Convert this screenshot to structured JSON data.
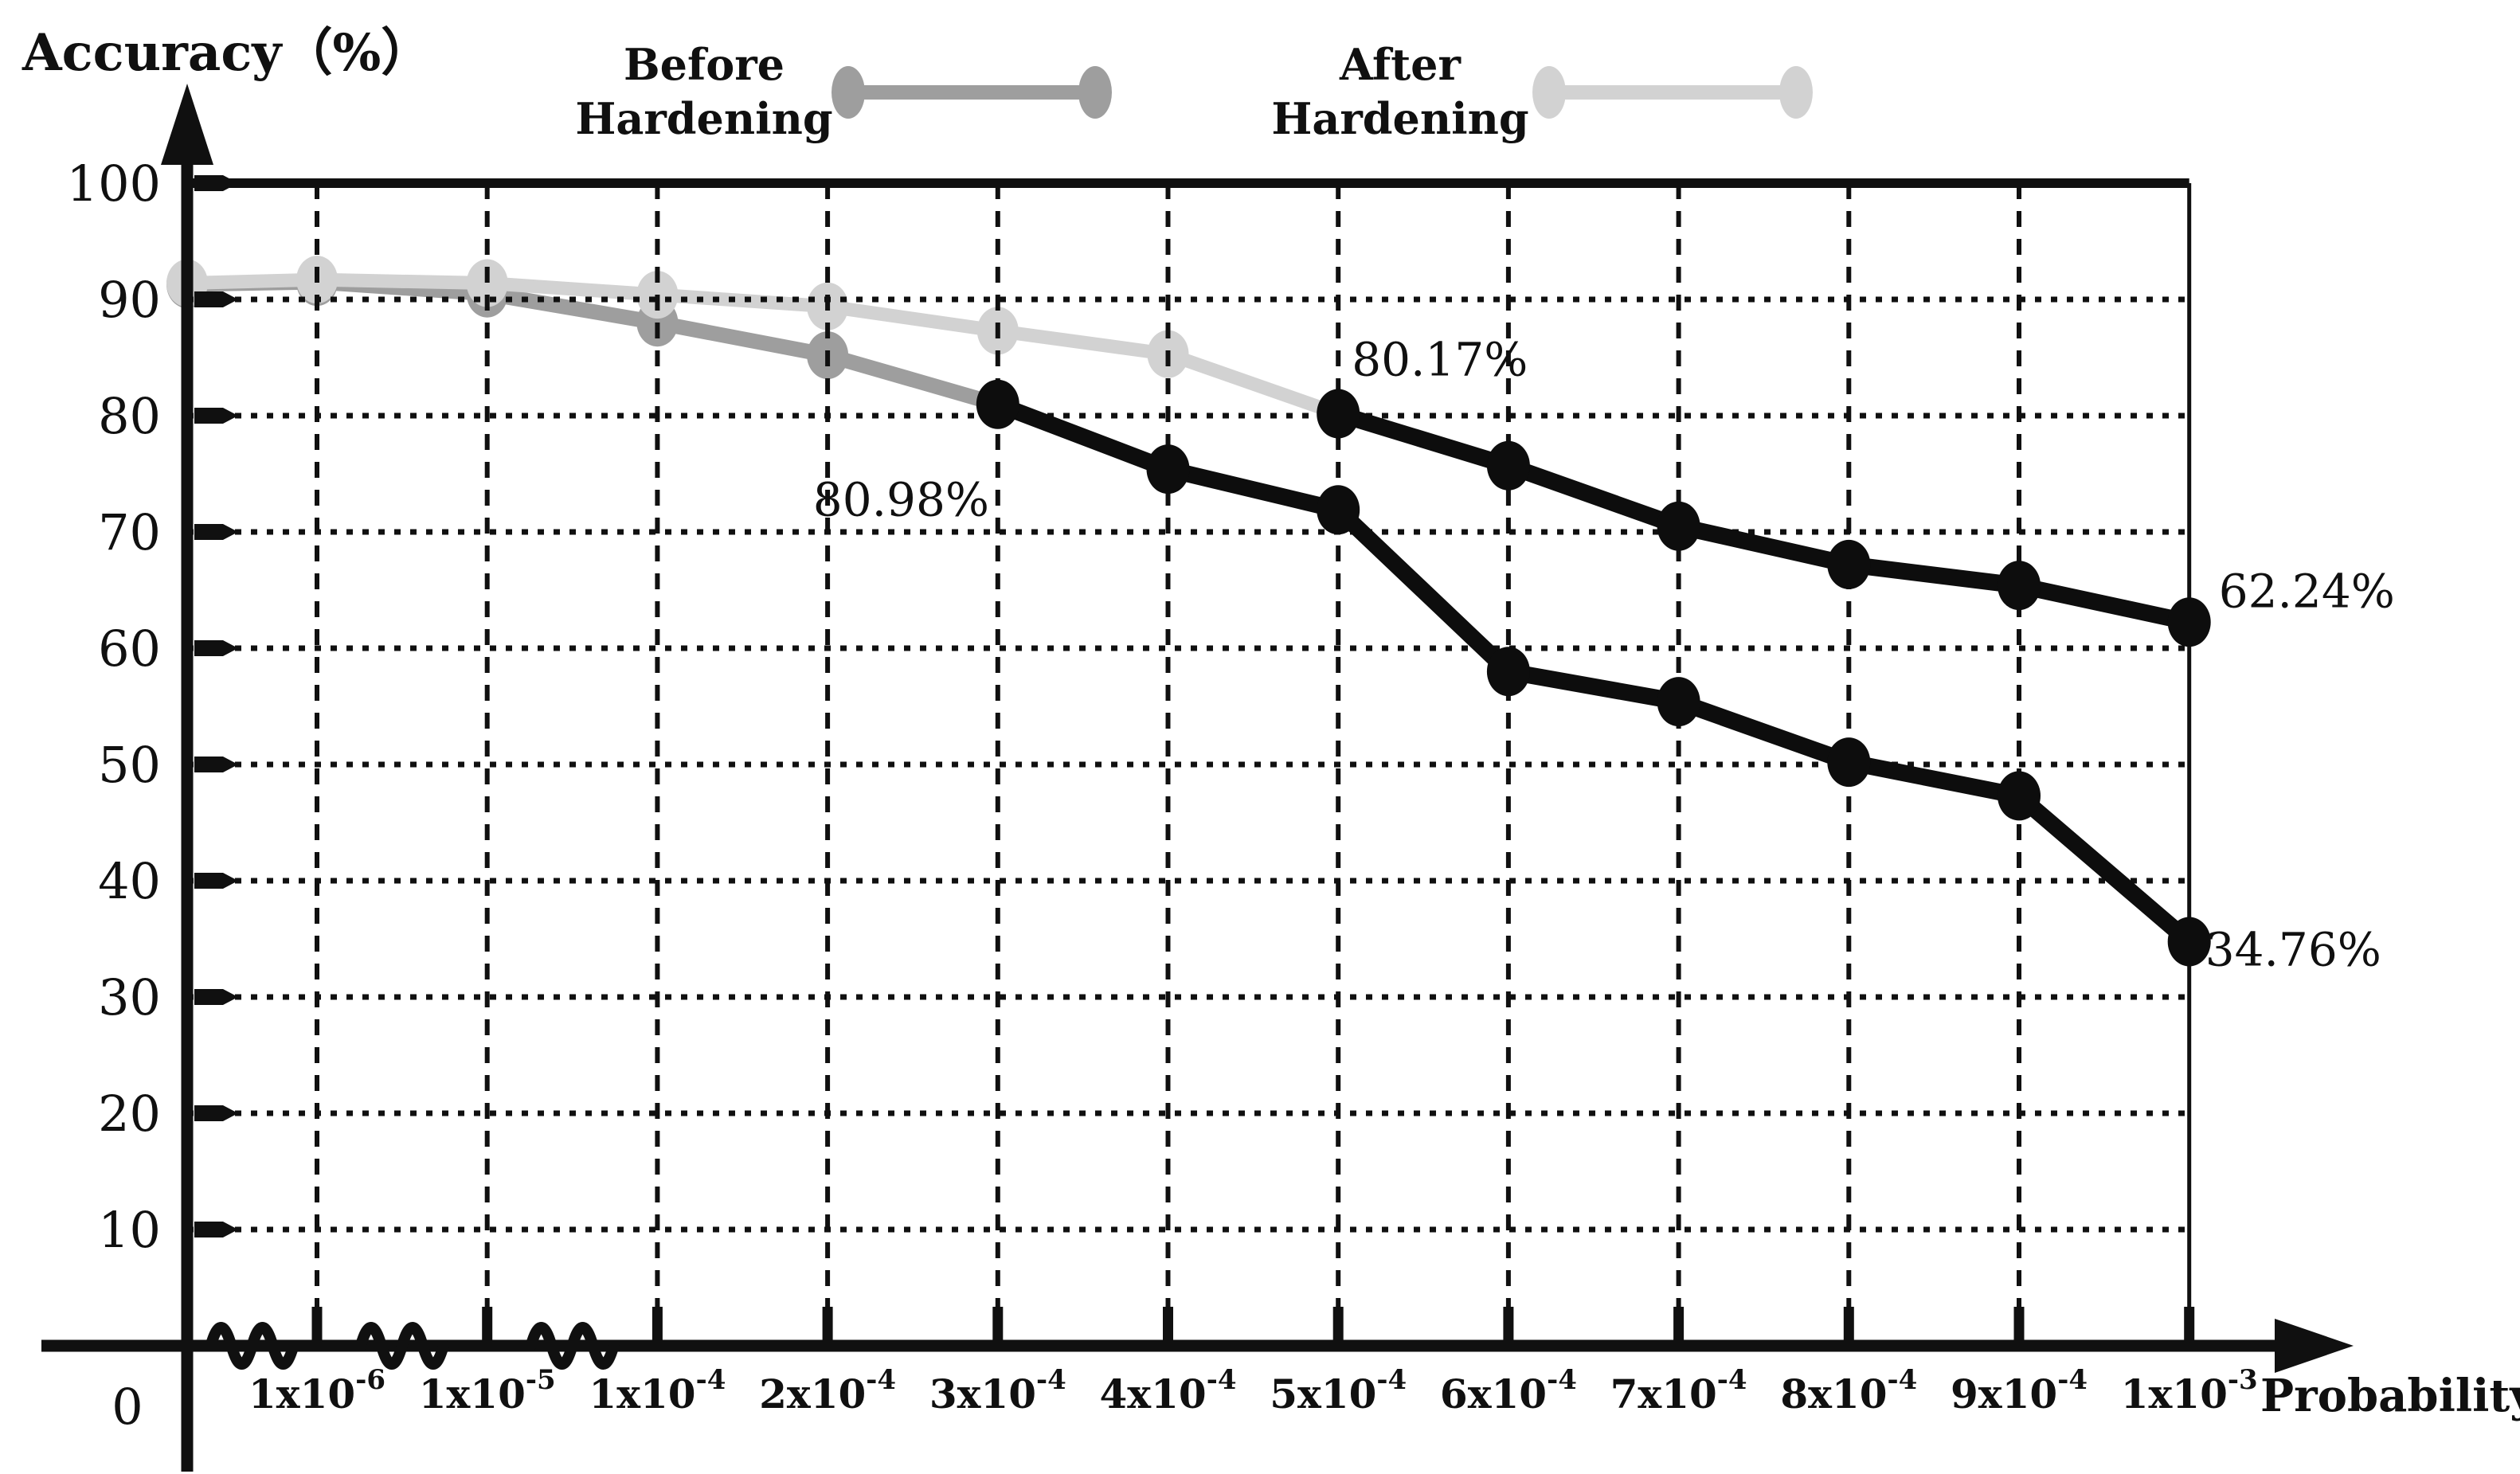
{
  "chart_data": {
    "type": "line",
    "title": "Accuracy（%）",
    "xlabel": "Probability",
    "origin_label": "0",
    "x_tick_labels": [
      {
        "base": "1x10",
        "exp": "-6"
      },
      {
        "base": "1x10",
        "exp": "-5"
      },
      {
        "base": "1x10",
        "exp": "-4"
      },
      {
        "base": "2x10",
        "exp": "-4"
      },
      {
        "base": "3x10",
        "exp": "-4"
      },
      {
        "base": "4x10",
        "exp": "-4"
      },
      {
        "base": "5x10",
        "exp": "-4"
      },
      {
        "base": "6x10",
        "exp": "-4"
      },
      {
        "base": "7x10",
        "exp": "-4"
      },
      {
        "base": "8x10",
        "exp": "-4"
      },
      {
        "base": "9x10",
        "exp": "-4"
      },
      {
        "base": "1x10",
        "exp": "-3"
      }
    ],
    "y_ticks": [
      10,
      20,
      30,
      40,
      50,
      60,
      70,
      80,
      90,
      100
    ],
    "ylim": [
      0,
      100
    ],
    "grid": "dotted",
    "axis_color": "#101010",
    "series": [
      {
        "name": "Before Hardening",
        "color": "#9e9e9e",
        "black": "#0d0d0d",
        "transition_index": 5,
        "values": [
          91.3,
          91.5,
          90.5,
          88.0,
          85.2,
          80.98,
          75.4,
          71.9,
          58.0,
          55.4,
          50.2,
          47.3,
          34.76
        ]
      },
      {
        "name": "After Hardening",
        "color": "#d2d2d2",
        "black": "#0d0d0d",
        "transition_index": 7,
        "values": [
          91.4,
          91.7,
          91.4,
          90.4,
          89.4,
          87.3,
          85.3,
          80.17,
          75.7,
          70.5,
          67.2,
          65.4,
          62.24
        ]
      }
    ],
    "annotations": [
      {
        "text": "80.98%",
        "series": 0,
        "point_index": 5
      },
      {
        "text": "80.17%",
        "series": 1,
        "point_index": 7
      },
      {
        "text": "62.24%",
        "series": 1,
        "point_index": 12
      },
      {
        "text": "34.76%",
        "series": 0,
        "point_index": 12
      }
    ]
  },
  "legend": {
    "before": [
      "Before",
      "Hardening"
    ],
    "after": [
      "After",
      "Hardening"
    ]
  }
}
